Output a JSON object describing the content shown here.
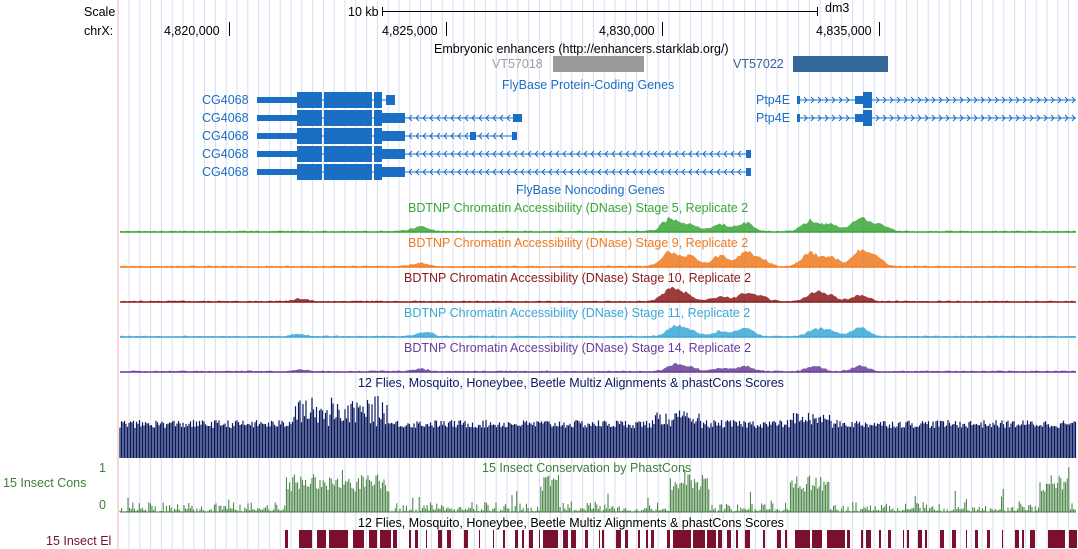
{
  "ruler": {
    "scale_label": "Scale",
    "chr_label": "chrX:",
    "scale_bar_label": "10 kb",
    "assembly": "dm3",
    "positions": [
      "4,820,000",
      "4,825,000",
      "4,830,000",
      "4,835,000"
    ]
  },
  "tracks": {
    "enhancers": {
      "title": "Embryonic enhancers (http://enhancers.starklab.org/)",
      "items": [
        {
          "name": "VT57018",
          "color": "#999999",
          "label_color": "#a0a0a0"
        },
        {
          "name": "VT57022",
          "color": "#336699",
          "label_color": "#336699"
        }
      ]
    },
    "flybase_coding": {
      "title": "FlyBase Protein-Coding Genes",
      "color": "#1a6ec4",
      "genes": [
        "CG4068",
        "CG4068",
        "CG4068",
        "CG4068",
        "CG4068",
        "Ptp4E",
        "Ptp4E"
      ]
    },
    "flybase_noncoding": {
      "title": "FlyBase Noncoding Genes"
    },
    "dnase": [
      {
        "title": "BDTNP Chromatin Accessibility (DNase) Stage 5, Replicate 2",
        "color": "#3aa637"
      },
      {
        "title": "BDTNP Chromatin Accessibility (DNase) Stage 9, Replicate 2",
        "color": "#f07a1e"
      },
      {
        "title": "BDTNP Chromatin Accessibility (DNase) Stage 10, Replicate 2",
        "color": "#8b1a1a"
      },
      {
        "title": "BDTNP Chromatin Accessibility (DNase) Stage 11, Replicate 2",
        "color": "#3aa7d6"
      },
      {
        "title": "BDTNP Chromatin Accessibility (DNase) Stage 14, Replicate 2",
        "color": "#6a3d9a"
      }
    ],
    "multiz": {
      "title": "12 Flies, Mosquito, Honeybee, Beetle Multiz Alignments & phastCons Scores",
      "color": "#0b1a5e"
    },
    "insect_cons": {
      "left_label": "15 Insect Cons",
      "title": "15 Insect Conservation by PhastCons",
      "ymax": "1",
      "ymin": "0",
      "color": "#3f7d3a"
    },
    "insect_el": {
      "left_label": "15 Insect El",
      "title": "12 Flies, Mosquito, Honeybee, Beetle Multiz Alignments & phastCons Scores",
      "color": "#7a0f2e"
    }
  }
}
